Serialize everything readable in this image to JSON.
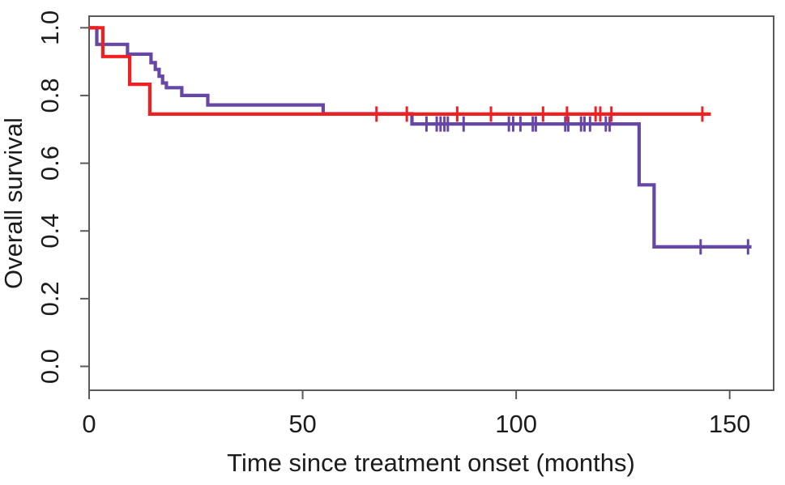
{
  "figure": {
    "kind": "kaplan-meier-survival-plot",
    "background_color": "#ffffff",
    "frame_color": "#5a5a5a",
    "text_color": "#1c1c1c"
  },
  "chart_data": {
    "type": "line",
    "subtype": "kaplan-meier-step",
    "title": "",
    "xlabel": "Time since treatment onset (months)",
    "ylabel": "Overall survival",
    "xlim": [
      0,
      160
    ],
    "ylim": [
      0,
      1.0
    ],
    "grid": false,
    "legend": "none",
    "x_ticks": [
      {
        "value": 0,
        "label": "0"
      },
      {
        "value": 50,
        "label": "50"
      },
      {
        "value": 100,
        "label": "100"
      },
      {
        "value": 150,
        "label": "150"
      }
    ],
    "y_ticks": [
      {
        "value": 0.0,
        "label": "0.0"
      },
      {
        "value": 0.2,
        "label": "0.2"
      },
      {
        "value": 0.4,
        "label": "0.4"
      },
      {
        "value": 0.6,
        "label": "0.6"
      },
      {
        "value": 0.8,
        "label": "0.8"
      },
      {
        "value": 1.0,
        "label": "1.0"
      }
    ],
    "series": [
      {
        "name": "group-purple",
        "color": "#6747a5",
        "line_width": 4.2,
        "steps": [
          [
            0,
            1.0
          ],
          [
            1.8,
            0.951
          ],
          [
            9.0,
            0.922
          ],
          [
            14.5,
            0.897
          ],
          [
            15.5,
            0.877
          ],
          [
            16.4,
            0.857
          ],
          [
            17.2,
            0.837
          ],
          [
            18.1,
            0.823
          ],
          [
            21.7,
            0.8
          ],
          [
            27.8,
            0.772
          ],
          [
            54.8,
            0.746
          ],
          [
            75.6,
            0.716
          ],
          [
            128.8,
            0.536
          ],
          [
            132.3,
            0.353
          ]
        ],
        "end_time": 155.1,
        "censor_times": [
          79.0,
          81.4,
          82.3,
          83.2,
          84.0,
          87.7,
          98.3,
          99.3,
          101.0,
          103.9,
          104.6,
          111.5,
          112.2,
          115.2,
          116.0,
          117.3,
          121.0,
          121.9,
          143.2,
          154.3
        ]
      },
      {
        "name": "group-red",
        "color": "#f02020",
        "line_width": 4.2,
        "steps": [
          [
            0,
            1.0
          ],
          [
            3.2,
            0.915
          ],
          [
            9.5,
            0.833
          ],
          [
            14.2,
            0.745
          ]
        ],
        "end_time": 145.6,
        "censor_times": [
          67.3,
          74.4,
          86.2,
          94.1,
          106.3,
          111.9,
          118.6,
          119.7,
          122.3,
          143.6
        ]
      }
    ]
  }
}
